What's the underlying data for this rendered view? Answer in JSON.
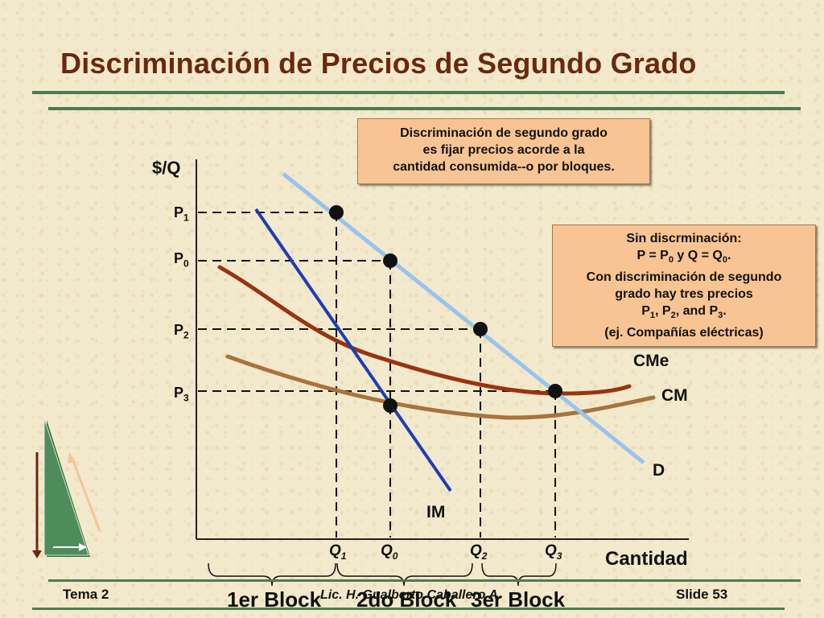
{
  "slide": {
    "title": "Discriminación de Precios de Segundo Grado",
    "footer_left": "Tema 2",
    "footer_center": "Lic. H. Gualberto Caballero A.",
    "footer_right": "Slide 53"
  },
  "box_top": {
    "lines": [
      "Discriminación de segundo grado",
      "es fijar precios acorde a la",
      "cantidad consumida--o por bloques."
    ]
  },
  "box_right": {
    "line1": "Sin discrminación:",
    "line2": "P = P",
    "line2_sub": "0",
    "line2_mid": " y Q = Q",
    "line2_sub2": "0",
    "line2_end": ".",
    "line3": "Con discriminación de segundo",
    "line4": "grado hay tres precios",
    "line5_a": "P",
    "line5_sub1": "1",
    "line5_b": ", P",
    "line5_sub2": "2",
    "line5_c": ", and P",
    "line5_sub3": "3",
    "line5_d": ".",
    "line6": "(ej. Compañías eléctricas)"
  },
  "axes": {
    "y_label": "$/Q",
    "x_label": "Cantidad"
  },
  "price_labels": [
    {
      "base": "P",
      "sub": "1"
    },
    {
      "base": "P",
      "sub": "0"
    },
    {
      "base": "P",
      "sub": "2"
    },
    {
      "base": "P",
      "sub": "3"
    }
  ],
  "quantity_labels": [
    {
      "base": "Q",
      "sub": "1"
    },
    {
      "base": "Q",
      "sub": "0"
    },
    {
      "base": "Q",
      "sub": "2"
    },
    {
      "base": "Q",
      "sub": "3"
    }
  ],
  "curves": {
    "demand": "D",
    "marginal_revenue": "IM",
    "average_cost": "CMe",
    "marginal_cost": "CM"
  },
  "blocks": [
    "1er Block",
    "2do Block",
    "3er Block"
  ],
  "colors": {
    "title": "#6b2710",
    "demand": "#99c3ee",
    "marginal_revenue": "#1f3db5",
    "average_cost": "#9a3310",
    "marginal_cost": "#a8733e",
    "box_fill": "#f8c493",
    "rule": "#4e7a52",
    "background": "#f3e9cc"
  }
}
